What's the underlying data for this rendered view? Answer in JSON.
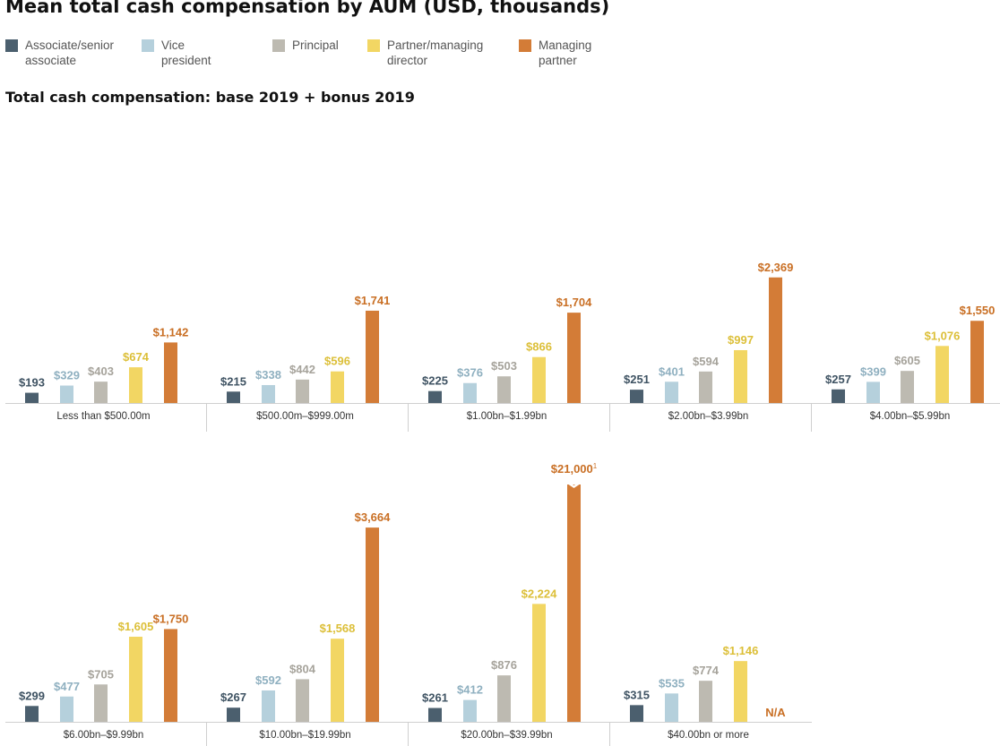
{
  "title": "Mean total cash compensation by AUM (USD, thousands)",
  "subtitle": "Total cash compensation: base 2019 + bonus 2019",
  "colors": {
    "associate": "#4b5f6e",
    "vice_president": "#b5d0dc",
    "principal": "#bdbab1",
    "partner": "#f2d663",
    "managing_partner": "#d37c37",
    "associate_label": "#3f5363",
    "vice_president_label": "#8fb0c0",
    "principal_label": "#a6a39b",
    "partner_label": "#dcbf38",
    "managing_partner_label": "#c96f24"
  },
  "legend": [
    {
      "label": "Associate/senior\nassociate",
      "color": "#4b5f6e"
    },
    {
      "label": "Vice president",
      "color": "#b5d0dc"
    },
    {
      "label": "Principal",
      "color": "#bdbab1"
    },
    {
      "label": "Partner/managing\ndirector",
      "color": "#f2d663"
    },
    {
      "label": "Managing\npartner",
      "color": "#d37c37"
    }
  ],
  "chart_data": {
    "type": "bar",
    "title": "Mean total cash compensation by AUM (USD, thousands)",
    "subtitle": "Total cash compensation: base 2019 + bonus 2019",
    "series_names": [
      "Associate/senior associate",
      "Vice president",
      "Principal",
      "Partner/managing director",
      "Managing partner"
    ],
    "groups": [
      {
        "category": "Less than $500.00m",
        "values": [
          193,
          329,
          403,
          674,
          1142
        ],
        "labels": [
          "$193",
          "$329",
          "$403",
          "$674",
          "$1,142"
        ]
      },
      {
        "category": "$500.00m–$999.00m",
        "values": [
          215,
          338,
          442,
          596,
          1741
        ],
        "labels": [
          "$215",
          "$338",
          "$442",
          "$596",
          "$1,741"
        ]
      },
      {
        "category": "$1.00bn–$1.99bn",
        "values": [
          225,
          376,
          503,
          866,
          1704
        ],
        "labels": [
          "$225",
          "$376",
          "$503",
          "$866",
          "$1,704"
        ]
      },
      {
        "category": "$2.00bn–$3.99bn",
        "values": [
          251,
          401,
          594,
          997,
          2369
        ],
        "labels": [
          "$251",
          "$401",
          "$594",
          "$997",
          "$2,369"
        ]
      },
      {
        "category": "$4.00bn–$5.99bn",
        "values": [
          257,
          399,
          605,
          1076,
          1550
        ],
        "labels": [
          "$257",
          "$399",
          "$605",
          "$1,076",
          "$1,550"
        ]
      },
      {
        "category": "$6.00bn–$9.99bn",
        "values": [
          299,
          477,
          705,
          1605,
          1750
        ],
        "labels": [
          "$299",
          "$477",
          "$705",
          "$1,605",
          "$1,750"
        ]
      },
      {
        "category": "$10.00bn–$19.99bn",
        "values": [
          267,
          592,
          804,
          1568,
          3664
        ],
        "labels": [
          "$267",
          "$592",
          "$804",
          "$1,568",
          "$3,664"
        ]
      },
      {
        "category": "$20.00bn–$39.99bn",
        "values": [
          261,
          412,
          876,
          2224,
          21000
        ],
        "labels": [
          "$261",
          "$412",
          "$876",
          "$2,224",
          "$21,000"
        ],
        "broken_bar_index": 4,
        "footnote_mark": "1"
      },
      {
        "category": "$40.00bn or more",
        "values": [
          315,
          535,
          774,
          1146,
          null
        ],
        "labels": [
          "$315",
          "$535",
          "$774",
          "$1,146",
          "N/A"
        ]
      }
    ],
    "grid": false,
    "legend_position": "top"
  }
}
